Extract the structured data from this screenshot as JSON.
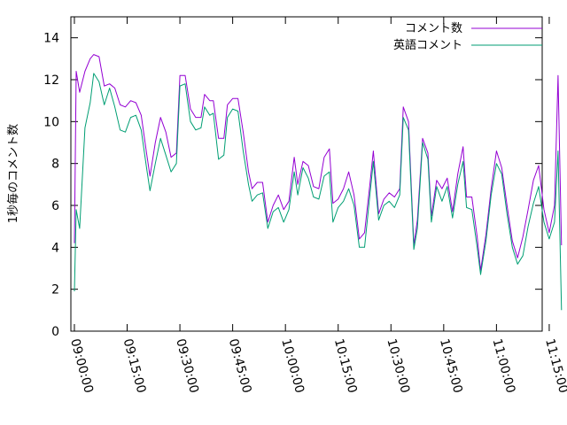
{
  "chart_data": {
    "type": "line",
    "title": "",
    "xlabel": "",
    "ylabel": "1秒毎のコメント数",
    "legend_position": "top-right",
    "grid": false,
    "x_tick_labels": [
      "09:00:00",
      "09:15:00",
      "09:30:00",
      "09:45:00",
      "10:00:00",
      "10:15:00",
      "10:30:00",
      "10:45:00",
      "11:00:00",
      "11:15:00"
    ],
    "y_ticks": [
      0,
      2,
      4,
      6,
      8,
      10,
      12,
      14
    ],
    "xlim_minutes": [
      -1,
      133
    ],
    "ylim": [
      0,
      15
    ],
    "series": [
      {
        "name": "コメント数",
        "color": "#9400d3",
        "points": [
          [
            0,
            4.2
          ],
          [
            0.5,
            12.4
          ],
          [
            1.5,
            11.4
          ],
          [
            3,
            12.4
          ],
          [
            4.5,
            13.0
          ],
          [
            5.5,
            13.2
          ],
          [
            7,
            13.1
          ],
          [
            8.5,
            11.7
          ],
          [
            10,
            11.8
          ],
          [
            11.5,
            11.6
          ],
          [
            13,
            10.8
          ],
          [
            14.5,
            10.7
          ],
          [
            16,
            11.0
          ],
          [
            17.5,
            10.9
          ],
          [
            19,
            10.3
          ],
          [
            20.5,
            8.5
          ],
          [
            21.5,
            7.4
          ],
          [
            23,
            9.0
          ],
          [
            24.5,
            10.2
          ],
          [
            26,
            9.5
          ],
          [
            27.5,
            8.3
          ],
          [
            29,
            8.5
          ],
          [
            30,
            12.2
          ],
          [
            31.5,
            12.2
          ],
          [
            33,
            10.6
          ],
          [
            34.5,
            10.2
          ],
          [
            36,
            10.2
          ],
          [
            37,
            11.3
          ],
          [
            38.5,
            11.0
          ],
          [
            39.5,
            11.0
          ],
          [
            41,
            9.2
          ],
          [
            42.5,
            9.2
          ],
          [
            43.5,
            10.8
          ],
          [
            45,
            11.1
          ],
          [
            46.5,
            11.1
          ],
          [
            48,
            9.5
          ],
          [
            49.5,
            7.6
          ],
          [
            50.5,
            6.8
          ],
          [
            52,
            7.1
          ],
          [
            53.5,
            7.1
          ],
          [
            55,
            5.2
          ],
          [
            56.5,
            6.0
          ],
          [
            58,
            6.5
          ],
          [
            59.5,
            5.8
          ],
          [
            61,
            6.2
          ],
          [
            62.5,
            8.3
          ],
          [
            63.5,
            7.0
          ],
          [
            65,
            8.1
          ],
          [
            66.5,
            7.9
          ],
          [
            68,
            6.9
          ],
          [
            69.5,
            6.8
          ],
          [
            71,
            8.3
          ],
          [
            72.5,
            8.7
          ],
          [
            73.5,
            6.1
          ],
          [
            75,
            6.3
          ],
          [
            76.5,
            6.8
          ],
          [
            78,
            7.6
          ],
          [
            79.5,
            6.5
          ],
          [
            81,
            4.4
          ],
          [
            82.5,
            4.7
          ],
          [
            84,
            7.0
          ],
          [
            85,
            8.6
          ],
          [
            86.5,
            5.6
          ],
          [
            88,
            6.3
          ],
          [
            89.5,
            6.6
          ],
          [
            91,
            6.4
          ],
          [
            92.5,
            6.8
          ],
          [
            93.5,
            10.7
          ],
          [
            95,
            10.0
          ],
          [
            96.5,
            4.1
          ],
          [
            97.5,
            5.3
          ],
          [
            99,
            9.2
          ],
          [
            100.5,
            8.5
          ],
          [
            101.5,
            5.5
          ],
          [
            103,
            7.2
          ],
          [
            104.5,
            6.8
          ],
          [
            106,
            7.3
          ],
          [
            107.5,
            5.7
          ],
          [
            109,
            7.5
          ],
          [
            110.5,
            8.8
          ],
          [
            111.5,
            6.4
          ],
          [
            113,
            6.4
          ],
          [
            114.5,
            4.5
          ],
          [
            115.5,
            2.9
          ],
          [
            117,
            4.6
          ],
          [
            118.5,
            6.8
          ],
          [
            120,
            8.6
          ],
          [
            121.5,
            7.8
          ],
          [
            123,
            6.0
          ],
          [
            124.5,
            4.3
          ],
          [
            126,
            3.5
          ],
          [
            127.5,
            4.5
          ],
          [
            129,
            5.8
          ],
          [
            130.5,
            7.2
          ],
          [
            132,
            7.9
          ],
          [
            133.5,
            5.8
          ],
          [
            135,
            4.7
          ],
          [
            136.5,
            6.0
          ],
          [
            137.5,
            12.2
          ],
          [
            138.5,
            4.1
          ]
        ]
      },
      {
        "name": "英語コメント",
        "color": "#009e73",
        "points": [
          [
            0,
            1.9
          ],
          [
            0.5,
            5.8
          ],
          [
            1.5,
            4.9
          ],
          [
            3,
            9.7
          ],
          [
            4.5,
            10.9
          ],
          [
            5.5,
            12.3
          ],
          [
            7,
            11.9
          ],
          [
            8.5,
            10.8
          ],
          [
            10,
            11.6
          ],
          [
            11.5,
            10.7
          ],
          [
            13,
            9.6
          ],
          [
            14.5,
            9.5
          ],
          [
            16,
            10.2
          ],
          [
            17.5,
            10.3
          ],
          [
            19,
            9.6
          ],
          [
            20.5,
            7.8
          ],
          [
            21.5,
            6.7
          ],
          [
            23,
            8.0
          ],
          [
            24.5,
            9.2
          ],
          [
            26,
            8.4
          ],
          [
            27.5,
            7.6
          ],
          [
            29,
            8.0
          ],
          [
            30,
            11.7
          ],
          [
            31.5,
            11.8
          ],
          [
            33,
            10.0
          ],
          [
            34.5,
            9.6
          ],
          [
            36,
            9.7
          ],
          [
            37,
            10.7
          ],
          [
            38.5,
            10.3
          ],
          [
            39.5,
            10.4
          ],
          [
            41,
            8.2
          ],
          [
            42.5,
            8.4
          ],
          [
            43.5,
            10.2
          ],
          [
            45,
            10.6
          ],
          [
            46.5,
            10.5
          ],
          [
            48,
            8.6
          ],
          [
            49.5,
            7.0
          ],
          [
            50.5,
            6.2
          ],
          [
            52,
            6.5
          ],
          [
            53.5,
            6.6
          ],
          [
            55,
            4.9
          ],
          [
            56.5,
            5.7
          ],
          [
            58,
            5.9
          ],
          [
            59.5,
            5.2
          ],
          [
            61,
            5.8
          ],
          [
            62.5,
            7.6
          ],
          [
            63.5,
            6.5
          ],
          [
            65,
            7.8
          ],
          [
            66.5,
            7.3
          ],
          [
            68,
            6.4
          ],
          [
            69.5,
            6.3
          ],
          [
            71,
            7.4
          ],
          [
            72.5,
            7.6
          ],
          [
            73.5,
            5.2
          ],
          [
            75,
            5.9
          ],
          [
            76.5,
            6.2
          ],
          [
            78,
            6.8
          ],
          [
            79.5,
            6.0
          ],
          [
            81,
            4.0
          ],
          [
            82.5,
            4.0
          ],
          [
            84,
            6.5
          ],
          [
            85,
            8.1
          ],
          [
            86.5,
            5.3
          ],
          [
            88,
            6.0
          ],
          [
            89.5,
            6.2
          ],
          [
            91,
            5.9
          ],
          [
            92.5,
            6.5
          ],
          [
            93.5,
            10.2
          ],
          [
            95,
            9.6
          ],
          [
            96.5,
            3.9
          ],
          [
            97.5,
            4.9
          ],
          [
            99,
            9.0
          ],
          [
            100.5,
            8.2
          ],
          [
            101.5,
            5.2
          ],
          [
            103,
            6.9
          ],
          [
            104.5,
            6.2
          ],
          [
            106,
            6.9
          ],
          [
            107.5,
            5.4
          ],
          [
            109,
            7.0
          ],
          [
            110.5,
            8.1
          ],
          [
            111.5,
            5.9
          ],
          [
            113,
            5.8
          ],
          [
            114.5,
            4.0
          ],
          [
            115.5,
            2.7
          ],
          [
            117,
            4.3
          ],
          [
            118.5,
            6.5
          ],
          [
            120,
            8.0
          ],
          [
            121.5,
            7.5
          ],
          [
            123,
            5.6
          ],
          [
            124.5,
            4.0
          ],
          [
            126,
            3.2
          ],
          [
            127.5,
            3.6
          ],
          [
            129,
            5.0
          ],
          [
            130.5,
            6.1
          ],
          [
            132,
            6.9
          ],
          [
            133.5,
            5.2
          ],
          [
            135,
            4.4
          ],
          [
            136.5,
            5.2
          ],
          [
            137.5,
            8.6
          ],
          [
            138.5,
            1.0
          ]
        ]
      }
    ]
  }
}
